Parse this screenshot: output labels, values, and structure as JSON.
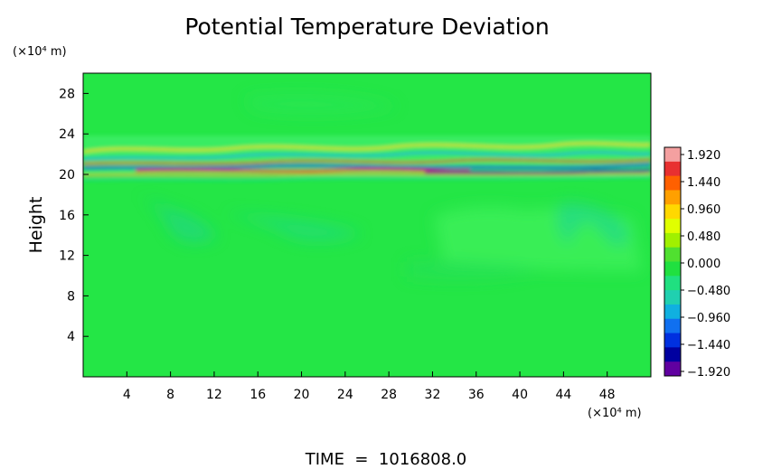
{
  "chart_data": {
    "type": "heatmap",
    "title": "Potential Temperature Deviation",
    "ylabel": "Height",
    "y_unit": "(×10⁴ m)",
    "x_unit": "(×10⁴ m)",
    "footer": "TIME  =  1016808.0",
    "xlim": [
      0,
      52
    ],
    "ylim": [
      0,
      30
    ],
    "x_ticks": [
      "4",
      "8",
      "12",
      "16",
      "20",
      "24",
      "28",
      "32",
      "36",
      "40",
      "44",
      "48"
    ],
    "y_ticks": [
      "4",
      "8",
      "12",
      "16",
      "20",
      "24",
      "28"
    ],
    "x_tick_values": [
      4,
      8,
      12,
      16,
      20,
      24,
      28,
      32,
      36,
      40,
      44,
      48
    ],
    "y_tick_values": [
      4,
      8,
      12,
      16,
      20,
      24,
      28
    ],
    "colorbar": {
      "min": -1.92,
      "max": 1.92,
      "labels": [
        "1.920",
        "1.440",
        "0.960",
        "0.480",
        "0.000",
        "−0.480",
        "−0.960",
        "−1.440",
        "−1.920"
      ],
      "label_values": [
        1.92,
        1.44,
        0.96,
        0.48,
        0.0,
        -0.48,
        -0.96,
        -1.44,
        -1.92
      ],
      "colors": [
        "#f4a0a0",
        "#e83030",
        "#ff6000",
        "#ffa000",
        "#ffd800",
        "#e0ff00",
        "#a0f000",
        "#50e030",
        "#20e040",
        "#20e080",
        "#20d0b0",
        "#10b0e0",
        "#1070f0",
        "#0030e0",
        "#0000a0",
        "#6000a0"
      ]
    },
    "field_description": "Field is near 0.000 (green) almost everywhere; a band of strong alternating positive (red/yellow) and negative (blue) deviations lies between heights of about 19 and 23 (x10^4 m), with weak wave ripples up to about 26."
  }
}
